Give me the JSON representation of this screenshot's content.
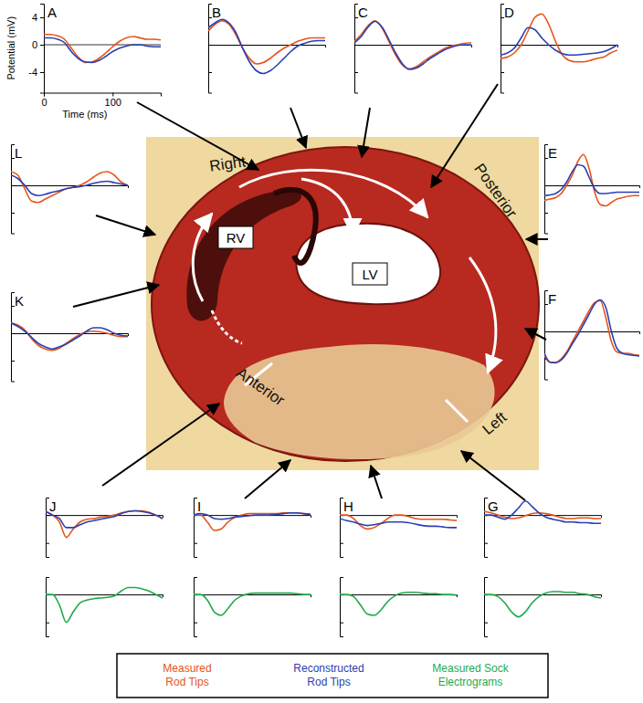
{
  "diagram": {
    "orientation_labels": [
      "Right",
      "Posterior",
      "Left",
      "Anterior"
    ],
    "chambers": [
      "RV",
      "LV"
    ]
  },
  "key": [
    {
      "label": [
        "Measured",
        "Rod Tips"
      ],
      "color": "#e5541b"
    },
    {
      "label": [
        "Reconstructed",
        "Rod Tips"
      ],
      "color": "#2a3fb0"
    },
    {
      "label": [
        "Measured Sock",
        "Electrograms"
      ],
      "color": "#1faa4a"
    }
  ],
  "chart_data": [
    {
      "type": "line",
      "title": "A",
      "x_label": "Time (ms)",
      "y_label": "Potential (mV)",
      "x": [
        0,
        10,
        20,
        30,
        40,
        50,
        60,
        70,
        80,
        90,
        100,
        110,
        120,
        130,
        140,
        150,
        160,
        170
      ],
      "xlim": [
        0,
        170
      ],
      "xticks": [
        0,
        100
      ],
      "ylim": [
        -7,
        6
      ],
      "yticks": [
        -4,
        0,
        4
      ],
      "series": [
        {
          "color": "#e5541b",
          "values": [
            1.5,
            1.5,
            1.3,
            0.8,
            -0.5,
            -1.8,
            -2.6,
            -2.5,
            -2,
            -1.2,
            -0.3,
            0.5,
            1.0,
            1.2,
            1.0,
            0.8,
            0.8,
            0.7
          ]
        },
        {
          "color": "#2a3fb0",
          "values": [
            1.0,
            1.0,
            0.8,
            0.3,
            -1.0,
            -2.0,
            -2.5,
            -2.6,
            -2.3,
            -1.7,
            -1.0,
            -0.5,
            -0.2,
            0,
            0,
            -0.2,
            -0.3,
            -0.3
          ]
        }
      ]
    },
    {
      "type": "line",
      "title": "B",
      "tick_labels": false,
      "x": [
        0,
        10,
        20,
        30,
        40,
        50,
        60,
        70,
        80,
        90,
        100,
        110,
        120,
        130,
        140,
        150,
        160,
        170
      ],
      "xlim": [
        0,
        170
      ],
      "ylim": [
        -7,
        6
      ],
      "yticks": [
        -4,
        0,
        4
      ],
      "series": [
        {
          "color": "#e5541b",
          "values": [
            2.0,
            3.0,
            3.5,
            3.0,
            1.5,
            -0.5,
            -2.0,
            -2.8,
            -2.6,
            -2.0,
            -1.2,
            -0.5,
            0,
            0.5,
            0.8,
            1.0,
            1.0,
            1.0
          ]
        },
        {
          "color": "#2a3fb0",
          "values": [
            2.5,
            3.2,
            3.7,
            3.2,
            1.8,
            -0.5,
            -2.5,
            -3.8,
            -4.2,
            -3.8,
            -3.0,
            -2.0,
            -1.0,
            -0.2,
            0.2,
            0.5,
            0.6,
            0.6
          ]
        }
      ]
    },
    {
      "type": "line",
      "title": "C",
      "tick_labels": false,
      "x": [
        0,
        10,
        20,
        30,
        40,
        50,
        60,
        70,
        80,
        90,
        100,
        110,
        120,
        130,
        140,
        150,
        160,
        170
      ],
      "xlim": [
        0,
        170
      ],
      "ylim": [
        -7,
        6
      ],
      "yticks": [
        -4,
        0,
        4
      ],
      "series": [
        {
          "color": "#e5541b",
          "values": [
            0.5,
            1.5,
            2.8,
            3.5,
            2.5,
            0.5,
            -1.5,
            -3.0,
            -3.5,
            -3.2,
            -2.5,
            -1.8,
            -1.2,
            -0.6,
            -0.2,
            0,
            0.2,
            0.3
          ]
        },
        {
          "color": "#2a3fb0",
          "values": [
            0.3,
            1.2,
            2.6,
            3.4,
            2.6,
            0.8,
            -1.2,
            -2.8,
            -3.6,
            -3.4,
            -2.8,
            -2.0,
            -1.4,
            -0.8,
            -0.4,
            -0.1,
            0,
            0
          ]
        }
      ]
    },
    {
      "type": "line",
      "title": "D",
      "tick_labels": false,
      "x": [
        0,
        10,
        20,
        30,
        40,
        50,
        60,
        70,
        80,
        90,
        100,
        110,
        120,
        130,
        140,
        150,
        160,
        170
      ],
      "xlim": [
        0,
        170
      ],
      "ylim": [
        -7,
        6
      ],
      "yticks": [
        -4,
        0,
        4
      ],
      "series": [
        {
          "color": "#e5541b",
          "values": [
            -2,
            -1.8,
            -1.2,
            0,
            2,
            4,
            4.5,
            3,
            0.5,
            -1.5,
            -2.3,
            -2.5,
            -2.5,
            -2.3,
            -2,
            -1.8,
            -1.2,
            -0.8
          ]
        },
        {
          "color": "#2a3fb0",
          "values": [
            -1.5,
            -1.2,
            -0.5,
            1.0,
            2.5,
            2.2,
            1.0,
            0,
            -0.8,
            -1.3,
            -1.5,
            -1.5,
            -1.4,
            -1.3,
            -1.2,
            -1.0,
            -0.6,
            0
          ]
        }
      ]
    },
    {
      "type": "line",
      "title": "E",
      "tick_labels": false,
      "x": [
        0,
        10,
        20,
        30,
        40,
        50,
        60,
        70,
        80,
        90,
        100,
        110,
        120,
        130,
        140,
        150,
        160,
        170
      ],
      "xlim": [
        0,
        170
      ],
      "ylim": [
        -7,
        6
      ],
      "yticks": [
        -4,
        0,
        4
      ],
      "series": [
        {
          "color": "#e5541b",
          "values": [
            -2.2,
            -2.0,
            -1.8,
            -1.2,
            0,
            1.5,
            3.5,
            4.5,
            2.5,
            -1,
            -2.8,
            -3,
            -2.5,
            -2,
            -1.8,
            -1.6,
            -1.5,
            -1.5
          ]
        },
        {
          "color": "#2a3fb0",
          "values": [
            -1.5,
            -1.4,
            -1.2,
            -0.6,
            0.5,
            2,
            3,
            2.8,
            1.2,
            -0.5,
            -1.2,
            -1.2,
            -1.1,
            -1.0,
            -1.0,
            -1.0,
            -1.0,
            -1.0
          ]
        }
      ]
    },
    {
      "type": "line",
      "title": "F",
      "tick_labels": false,
      "x": [
        0,
        10,
        20,
        30,
        40,
        50,
        60,
        70,
        80,
        90,
        100,
        110,
        120,
        130,
        140,
        150,
        160,
        170
      ],
      "xlim": [
        0,
        170
      ],
      "ylim": [
        -7,
        6
      ],
      "yticks": [
        -4,
        0,
        4
      ],
      "series": [
        {
          "color": "#e5541b",
          "values": [
            -3.5,
            -4.5,
            -4.5,
            -4,
            -3,
            -1.5,
            0,
            1.5,
            3,
            4.2,
            4.5,
            2,
            -1.5,
            -3,
            -3.2,
            -3.2,
            -3.4,
            -3.5
          ]
        },
        {
          "color": "#2a3fb0",
          "values": [
            -3.2,
            -4.5,
            -4.6,
            -4.2,
            -3.2,
            -1.8,
            -0.5,
            1,
            2.5,
            4,
            4.6,
            3.5,
            0,
            -2.5,
            -3.2,
            -3.4,
            -3.5,
            -3.6
          ]
        }
      ]
    },
    {
      "type": "line",
      "title": "G",
      "tick_labels": false,
      "x": [
        0,
        10,
        20,
        30,
        40,
        50,
        60,
        70,
        80,
        90,
        100,
        110,
        120,
        130,
        140,
        150,
        160,
        170
      ],
      "xlim": [
        0,
        170
      ],
      "ylim": [
        -6,
        2.5
      ],
      "yticks": [
        -4,
        0
      ],
      "series": [
        {
          "color": "#e5541b",
          "values": [
            0.5,
            0.3,
            0,
            -0.3,
            -0.5,
            -0.4,
            -0.1,
            0.2,
            0.3,
            0.2,
            0,
            -0.3,
            -0.5,
            -0.5,
            -0.4,
            -0.4,
            -0.5,
            -0.5
          ]
        },
        {
          "color": "#2a3fb0",
          "values": [
            0,
            0,
            -0.3,
            -0.6,
            0,
            1.0,
            2.0,
            1.2,
            0.3,
            -0.3,
            -0.6,
            -0.8,
            -1.0,
            -1.0,
            -1.1,
            -1.1,
            -1.2,
            -1.2
          ]
        }
      ]
    },
    {
      "type": "line",
      "title": "H",
      "tick_labels": false,
      "x": [
        0,
        10,
        20,
        30,
        40,
        50,
        60,
        70,
        80,
        90,
        100,
        110,
        120,
        130,
        140,
        150,
        160,
        170
      ],
      "xlim": [
        0,
        170
      ],
      "ylim": [
        -6,
        2.5
      ],
      "yticks": [
        -4,
        0
      ],
      "series": [
        {
          "color": "#e5541b",
          "values": [
            0,
            0,
            -0.5,
            -1.5,
            -2.0,
            -1.8,
            -1.2,
            -0.5,
            0,
            0,
            -0.2,
            -0.5,
            -0.6,
            -0.6,
            -0.6,
            -0.6,
            -0.7,
            -0.8
          ]
        },
        {
          "color": "#2a3fb0",
          "values": [
            -0.5,
            -0.8,
            -1,
            -1.3,
            -1.5,
            -1.4,
            -1.2,
            -1,
            -1,
            -1,
            -1.1,
            -1.3,
            -1.5,
            -1.6,
            -1.6,
            -1.7,
            -1.8,
            -1.8
          ]
        }
      ]
    },
    {
      "type": "line",
      "title": "I",
      "tick_labels": false,
      "x": [
        0,
        10,
        20,
        30,
        40,
        50,
        60,
        70,
        80,
        90,
        100,
        110,
        120,
        130,
        140,
        150,
        160,
        170
      ],
      "xlim": [
        0,
        170
      ],
      "ylim": [
        -6,
        2.5
      ],
      "yticks": [
        -4,
        0
      ],
      "series": [
        {
          "color": "#e5541b",
          "values": [
            0,
            0,
            -1,
            -2.2,
            -2.0,
            -1.0,
            -0.3,
            0,
            0.2,
            0.2,
            0.2,
            0.2,
            0.2,
            0.3,
            0.3,
            0.3,
            0.2,
            0.1
          ]
        },
        {
          "color": "#2a3fb0",
          "values": [
            0,
            0.2,
            0,
            -0.5,
            -0.6,
            -0.5,
            -0.3,
            -0.2,
            -0.1,
            0,
            0,
            0,
            0.1,
            0.2,
            0.3,
            0.3,
            0.2,
            0.1
          ]
        }
      ]
    },
    {
      "type": "line",
      "title": "J",
      "tick_labels": false,
      "x": [
        0,
        10,
        20,
        30,
        40,
        50,
        60,
        70,
        80,
        90,
        100,
        110,
        120,
        130,
        140,
        150,
        160,
        170
      ],
      "xlim": [
        0,
        170
      ],
      "ylim": [
        -6,
        2.5
      ],
      "yticks": [
        -4,
        0
      ],
      "series": [
        {
          "color": "#e5541b",
          "values": [
            0.5,
            0,
            -1.0,
            -3.2,
            -2.0,
            -1.0,
            -0.6,
            -0.5,
            -0.3,
            -0.2,
            0,
            0.3,
            0.5,
            0.6,
            0.6,
            0.4,
            0,
            -0.5
          ]
        },
        {
          "color": "#2a3fb0",
          "values": [
            0.5,
            0,
            -0.5,
            -1.8,
            -1.8,
            -1.4,
            -1.0,
            -0.8,
            -0.6,
            -0.4,
            -0.2,
            0.2,
            0.5,
            0.6,
            0.5,
            0.3,
            0,
            -0.5
          ]
        }
      ]
    },
    {
      "type": "line",
      "title": "K",
      "tick_labels": false,
      "x": [
        0,
        10,
        20,
        30,
        40,
        50,
        60,
        70,
        80,
        90,
        100,
        110,
        120,
        130,
        140,
        150,
        160,
        170
      ],
      "xlim": [
        0,
        170
      ],
      "ylim": [
        -7,
        6
      ],
      "yticks": [
        -4,
        0,
        4
      ],
      "series": [
        {
          "color": "#e5541b",
          "values": [
            1.5,
            1.2,
            0.5,
            -0.8,
            -1.8,
            -2.3,
            -2.5,
            -2.2,
            -1.5,
            -0.8,
            -0.2,
            0.2,
            0.3,
            0.2,
            0,
            -0.3,
            -0.5,
            -0.5
          ]
        },
        {
          "color": "#2a3fb0",
          "values": [
            1.5,
            1.0,
            0.3,
            -0.6,
            -1.5,
            -2.0,
            -2.3,
            -2.0,
            -1.6,
            -1.0,
            -0.4,
            0.3,
            0.8,
            0.8,
            0.5,
            0,
            -0.3,
            -0.4
          ]
        }
      ]
    },
    {
      "type": "line",
      "title": "L",
      "tick_labels": false,
      "x": [
        0,
        10,
        20,
        30,
        40,
        50,
        60,
        70,
        80,
        90,
        100,
        110,
        120,
        130,
        140,
        150,
        160,
        170
      ],
      "xlim": [
        0,
        170
      ],
      "ylim": [
        -7,
        6
      ],
      "yticks": [
        -4,
        0,
        4
      ],
      "series": [
        {
          "color": "#e5541b",
          "values": [
            2,
            1.5,
            -0.5,
            -2.3,
            -2.5,
            -2.0,
            -1.5,
            -1.0,
            -0.5,
            -0.3,
            0,
            0.5,
            1.2,
            1.8,
            2.0,
            1.5,
            0.5,
            0
          ]
        },
        {
          "color": "#2a3fb0",
          "values": [
            1.5,
            1.0,
            0,
            -1.2,
            -1.5,
            -1.3,
            -1.0,
            -0.8,
            -0.5,
            -0.3,
            -0.2,
            0,
            0.3,
            0.5,
            0.6,
            0.4,
            0.2,
            0
          ]
        }
      ]
    },
    {
      "type": "line",
      "tick_labels": false,
      "x": [
        0,
        10,
        20,
        30,
        40,
        50,
        60,
        70,
        80,
        90,
        100,
        110,
        120,
        130,
        140,
        150,
        160,
        170
      ],
      "xlim": [
        0,
        170
      ],
      "ylim": [
        -6,
        2.5
      ],
      "yticks": [
        -4,
        0
      ],
      "series": [
        {
          "color": "#1faa4a",
          "values": [
            0,
            0,
            -1.5,
            -4.0,
            -2.5,
            -1.2,
            -0.8,
            -0.6,
            -0.5,
            -0.4,
            -0.2,
            0.5,
            1.0,
            1.0,
            0.8,
            0.5,
            0,
            -0.5
          ]
        }
      ]
    },
    {
      "type": "line",
      "tick_labels": false,
      "x": [
        0,
        10,
        20,
        30,
        40,
        50,
        60,
        70,
        80,
        90,
        100,
        110,
        120,
        130,
        140,
        150,
        160,
        170
      ],
      "xlim": [
        0,
        170
      ],
      "ylim": [
        -6,
        2.5
      ],
      "yticks": [
        -4,
        0
      ],
      "series": [
        {
          "color": "#1faa4a",
          "values": [
            0,
            0,
            -0.8,
            -2.5,
            -3.0,
            -2.0,
            -0.8,
            -0.2,
            0.1,
            0.2,
            0.2,
            0.2,
            0.2,
            0.2,
            0.2,
            0.1,
            0,
            0
          ]
        }
      ]
    },
    {
      "type": "line",
      "tick_labels": false,
      "x": [
        0,
        10,
        20,
        30,
        40,
        50,
        60,
        70,
        80,
        90,
        100,
        110,
        120,
        130,
        140,
        150,
        160,
        170
      ],
      "xlim": [
        0,
        170
      ],
      "ylim": [
        -6,
        2.5
      ],
      "yticks": [
        -4,
        0
      ],
      "series": [
        {
          "color": "#1faa4a",
          "values": [
            0,
            0,
            -0.3,
            -1.5,
            -2.8,
            -3.0,
            -2.2,
            -1.0,
            -0.2,
            0.2,
            0.3,
            0.3,
            0.2,
            0.1,
            0.1,
            0,
            0,
            -0.1
          ]
        }
      ]
    },
    {
      "type": "line",
      "tick_labels": false,
      "x": [
        0,
        10,
        20,
        30,
        40,
        50,
        60,
        70,
        80,
        90,
        100,
        110,
        120,
        130,
        140,
        150,
        160,
        170
      ],
      "xlim": [
        0,
        170
      ],
      "ylim": [
        -6,
        2.5
      ],
      "yticks": [
        -4,
        0
      ],
      "series": [
        {
          "color": "#1faa4a",
          "values": [
            0,
            0,
            -0.3,
            -1.2,
            -2.5,
            -3.2,
            -2.5,
            -1.2,
            -0.3,
            0.2,
            0.4,
            0.4,
            0.3,
            0.3,
            0.1,
            0,
            -0.3,
            -0.5
          ]
        }
      ]
    }
  ]
}
